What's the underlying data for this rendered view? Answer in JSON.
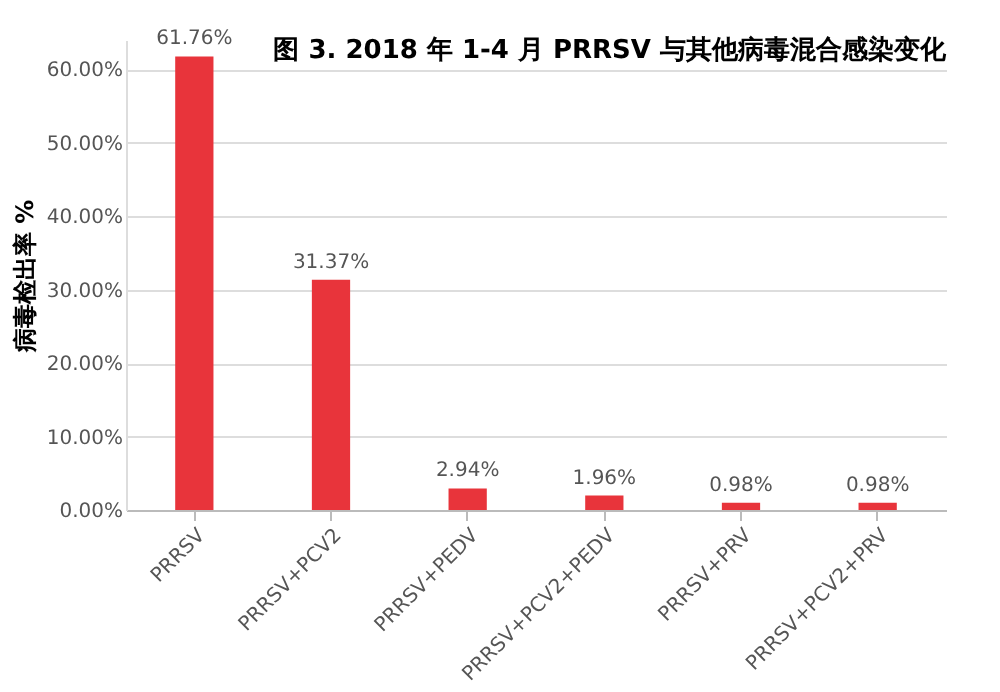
{
  "chart_data": {
    "type": "bar",
    "title": "图 3. 2018 年 1-4 月 PRRSV 与其他病毒混合感染变化",
    "ylabel": "病毒检出率 %",
    "categories": [
      "PRRSV",
      "PRRSV+PCV2",
      "PRRSV+PEDV",
      "PRRSV+PCV2+PEDV",
      "PRRSV+PRV",
      "PRRSV+PCV2+PRV"
    ],
    "values": [
      61.76,
      31.37,
      2.94,
      1.96,
      0.98,
      0.98
    ],
    "value_labels": [
      "61.76%",
      "31.37%",
      "2.94%",
      "1.96%",
      "0.98%",
      "0.98%"
    ],
    "color": "#e8343b",
    "ylim": [
      0,
      64
    ],
    "yticks": [
      {
        "value": 0,
        "label": "0.00%"
      },
      {
        "value": 10,
        "label": "10.00%"
      },
      {
        "value": 20,
        "label": "20.00%"
      },
      {
        "value": 30,
        "label": "30.00%"
      },
      {
        "value": 40,
        "label": "40.00%"
      },
      {
        "value": 50,
        "label": "50.00%"
      },
      {
        "value": 60,
        "label": "60.00%"
      }
    ],
    "grid": "y"
  }
}
